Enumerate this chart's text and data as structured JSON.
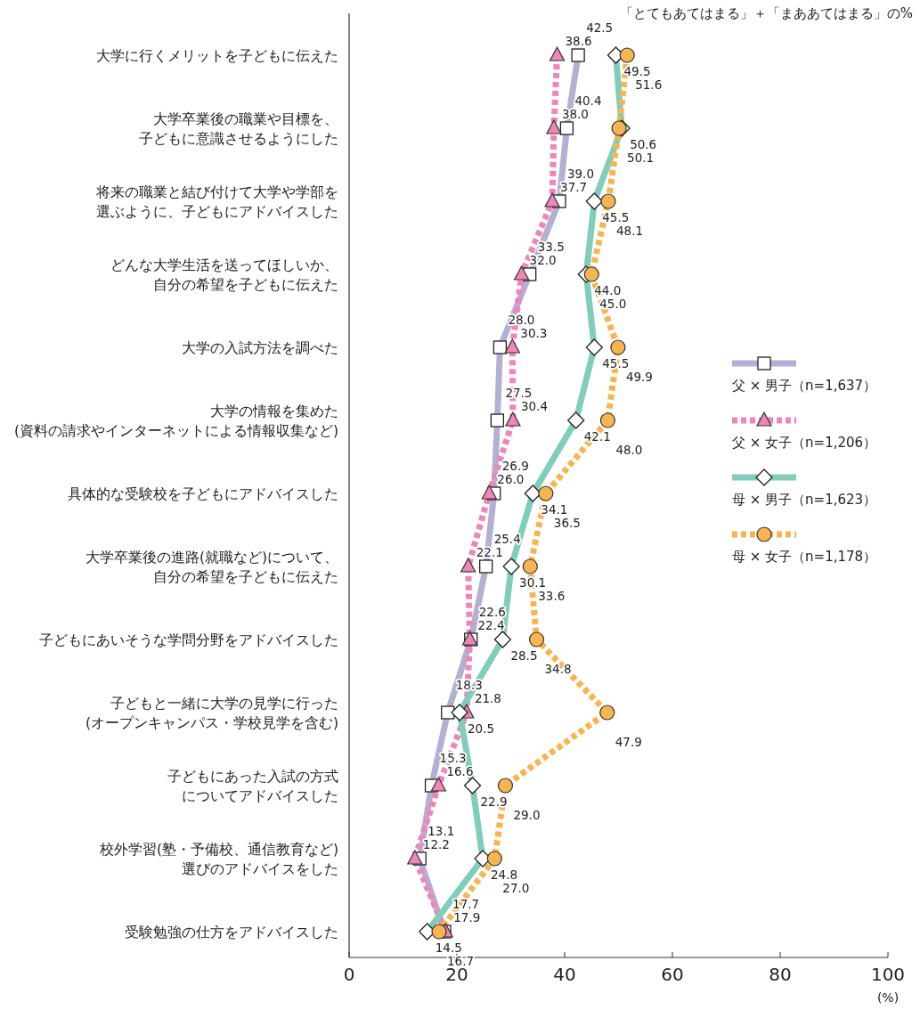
{
  "chart_data": {
    "type": "line",
    "orientation": "horizontal",
    "subtitle": "「とてもあてはまる」＋「まああてはまる」の%",
    "xlabel": "(%)",
    "categories": [
      "大学に行くメリットを子どもに伝えた",
      "大学卒業後の職業や目標を、子どもに意識させるようにした",
      "将来の職業と結び付けて大学や学部を選ぶように、子どもにアドバイスした",
      "どんな大学生活を送ってほしいか、自分の希望を子どもに伝えた",
      "大学の入試方法を調べた",
      "大学の情報を集めた(資料の請求やインターネットによる情報収集など)",
      "具体的な受験校を子どもにアドバイスした",
      "大学卒業後の進路(就職など)について、自分の希望を子どもに伝えた",
      "子どもにあいそうな学問分野をアドバイスした",
      "子どもと一緒に大学の見学に行った(オープンキャンパス・学校見学を含む)",
      "子どもにあった入試の方式についてアドバイスした",
      "校外学習(塾・予備校、通信教育など)選びのアドバイスをした",
      "受験勉強の仕方をアドバイスした"
    ],
    "series": [
      {
        "name": "父 × 男子（n=1,637）",
        "color": "#b3b0d4",
        "marker": "square",
        "line_style": "solid",
        "values": [
          42.5,
          40.4,
          39.0,
          33.5,
          28.0,
          27.5,
          26.9,
          25.4,
          22.6,
          18.3,
          15.3,
          13.1,
          17.7
        ],
        "value_labels": [
          "42.5",
          "40.4",
          "39.0",
          "33.5",
          "28.0",
          "27.5",
          "26.9",
          "25.4",
          "22.6",
          "18.3",
          "15.3",
          "13.1",
          "17.7"
        ]
      },
      {
        "name": "父 × 女子（n=1,206）",
        "color": "#ee86b8",
        "marker": "triangle",
        "line_style": "dotted",
        "values": [
          38.6,
          38.0,
          37.7,
          32.0,
          30.3,
          30.4,
          26.0,
          22.1,
          22.4,
          21.8,
          16.6,
          12.2,
          17.9
        ],
        "value_labels": [
          "38.6",
          "38.0",
          "37.7",
          "32.0",
          "30.3",
          "30.4",
          "26.0",
          "22.1",
          "22.4",
          "21.8",
          "16.6",
          "12.2",
          "17.9"
        ]
      },
      {
        "name": "母 × 男子（n=1,623）",
        "color": "#7fcdbb",
        "marker": "diamond",
        "line_style": "solid",
        "values": [
          49.5,
          50.6,
          45.5,
          44.0,
          45.5,
          42.1,
          34.1,
          30.1,
          28.5,
          20.5,
          22.9,
          24.8,
          14.5
        ],
        "value_labels": [
          "49.5",
          "50.6",
          "45.5",
          "44.0",
          "45.5",
          "42.1",
          "34.1",
          "30.1",
          "28.5",
          "20.5",
          "22.9",
          "24.8",
          "14.5"
        ]
      },
      {
        "name": "母 × 女子（n=1,178）",
        "color": "#f7b551",
        "marker": "circle",
        "line_style": "dotted",
        "values": [
          51.6,
          50.1,
          48.1,
          45.0,
          49.9,
          48.0,
          36.5,
          33.6,
          34.8,
          47.9,
          29.0,
          27.0,
          16.7
        ],
        "value_labels": [
          "51.6",
          "50.1",
          "48.1",
          "45.0",
          "49.9",
          "48.0",
          "36.5",
          "33.6",
          "34.8",
          "47.9",
          "29.0",
          "27.0",
          "16.7"
        ]
      }
    ],
    "xlim": [
      0,
      100
    ],
    "xticks": [
      0,
      20,
      40,
      60,
      80,
      100
    ],
    "legend": "right"
  }
}
